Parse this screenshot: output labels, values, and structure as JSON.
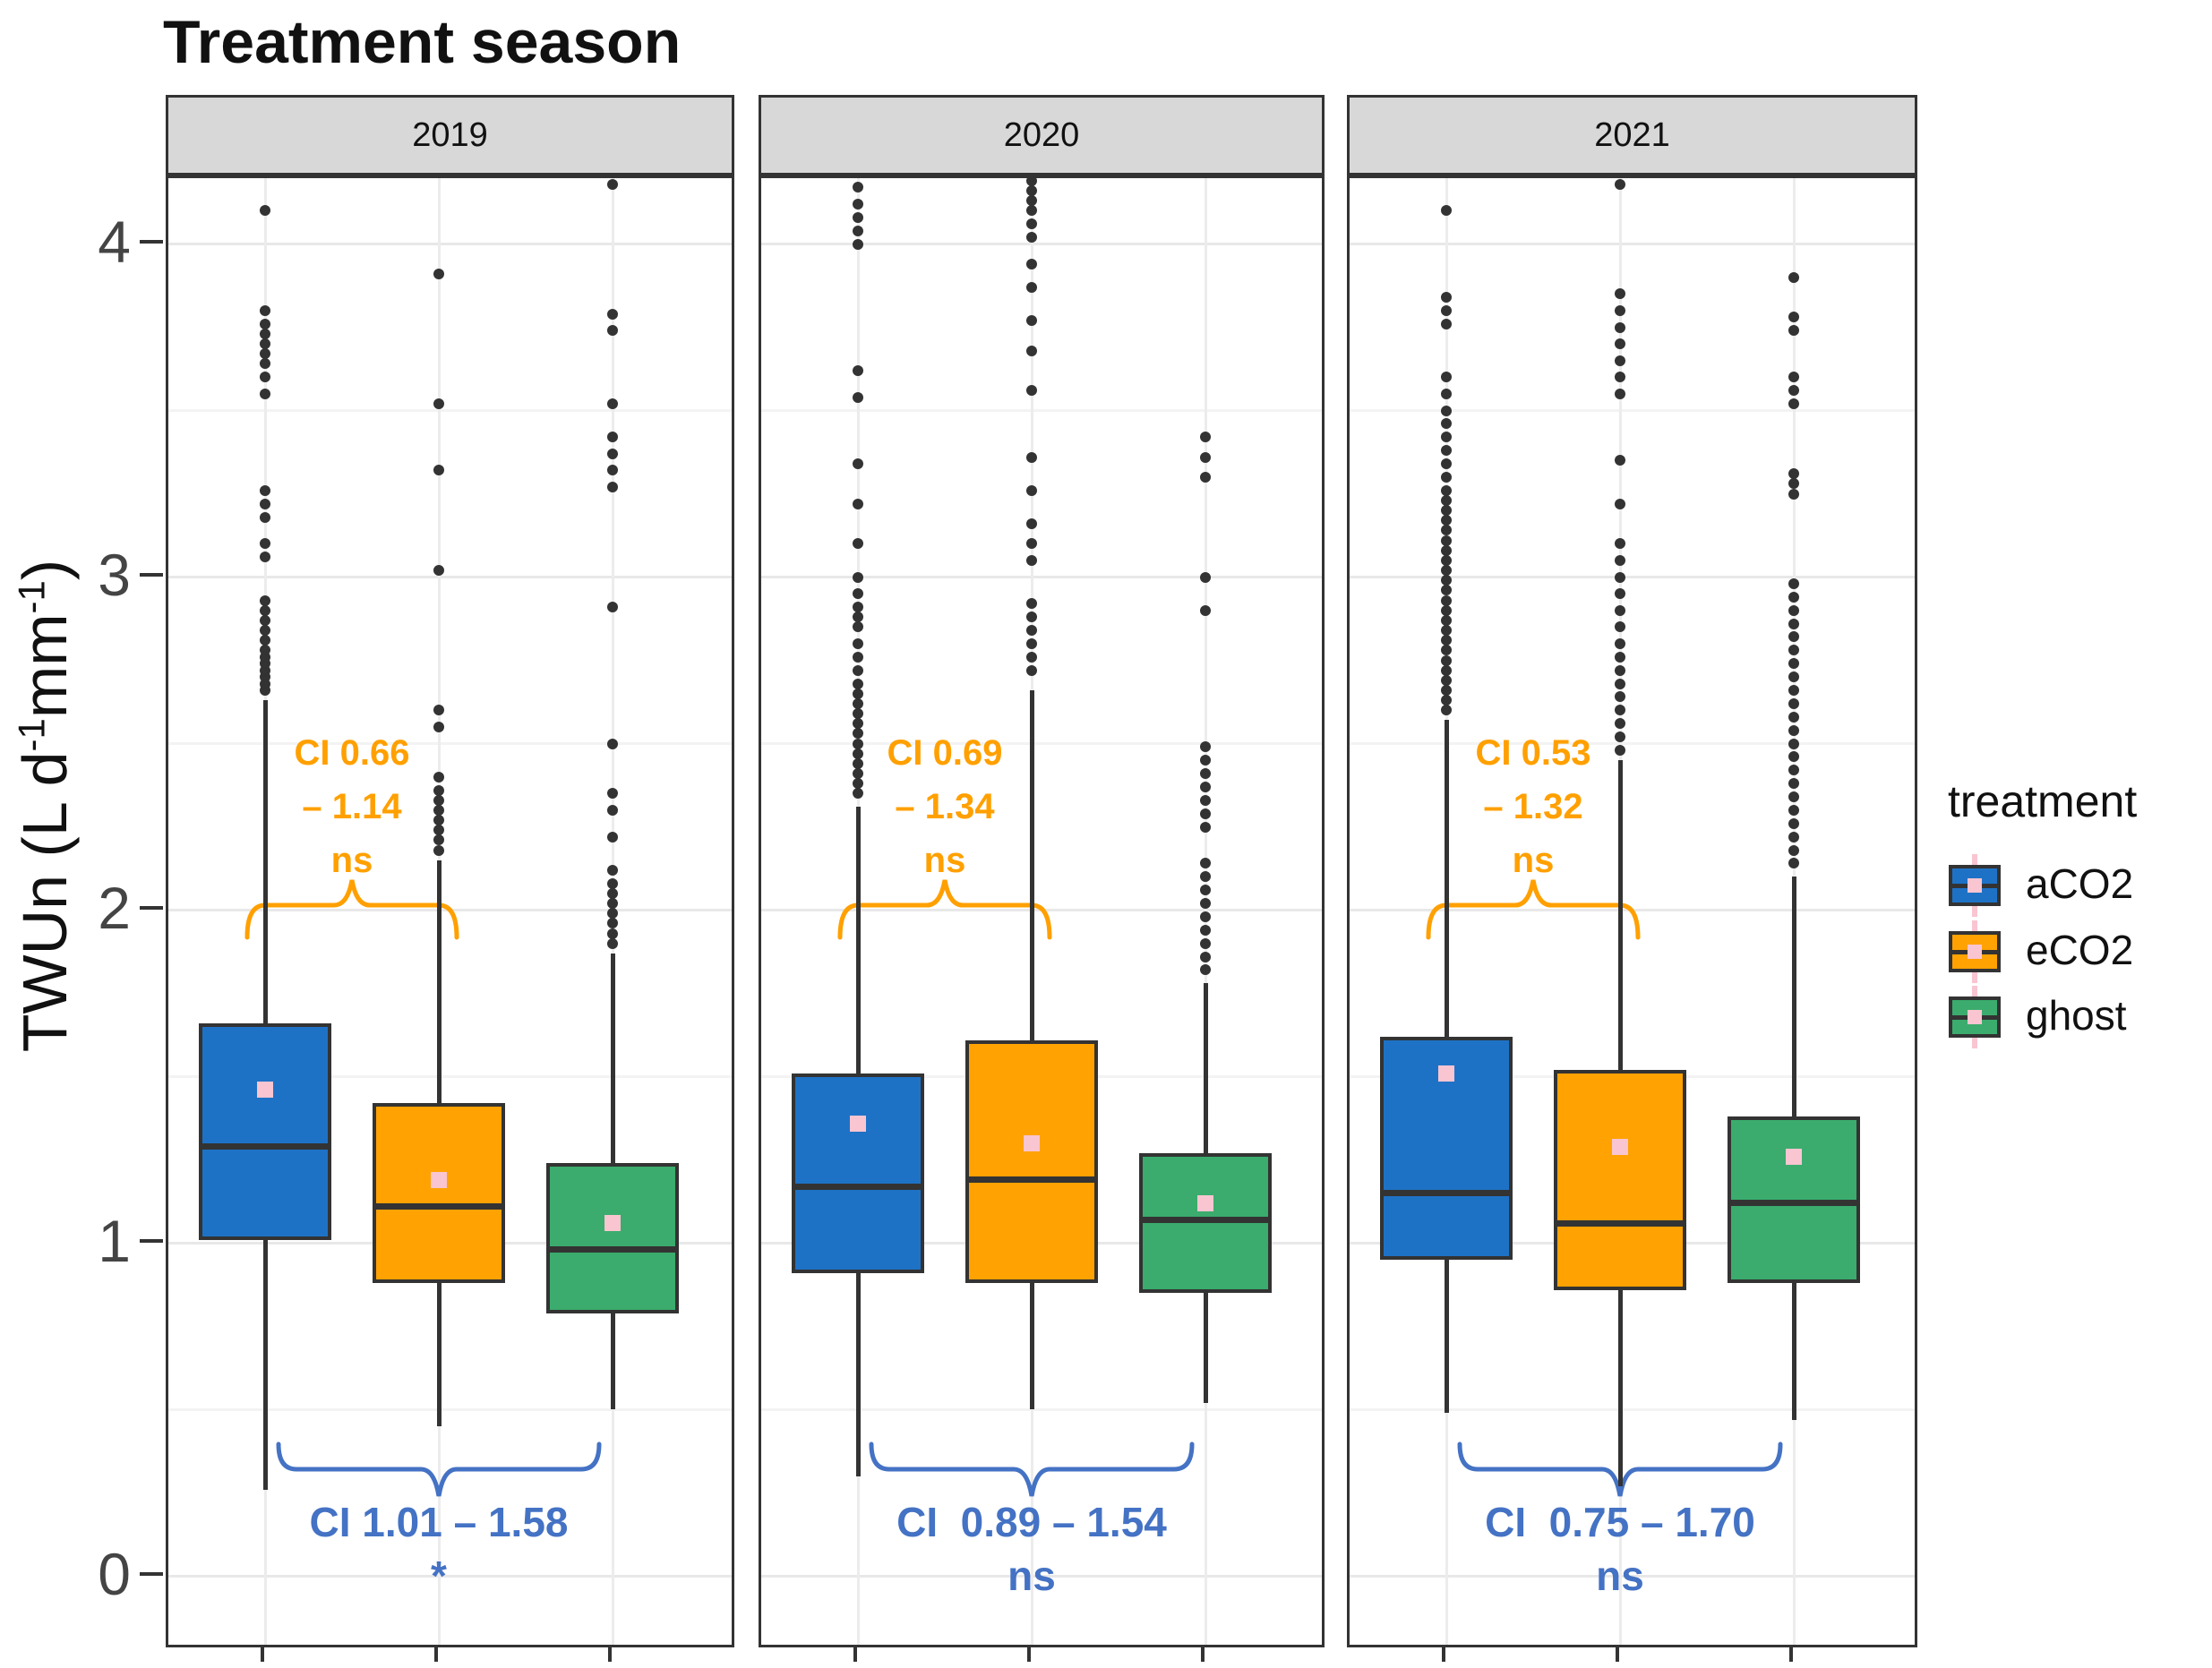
{
  "title": "Treatment season",
  "y_axis": {
    "label_prefix": "TWUn (L d",
    "label_sup1": "-1",
    "label_mid": "mm",
    "label_sup2": "-1",
    "label_suffix": ")",
    "ticks": [
      0,
      1,
      2,
      3,
      4
    ]
  },
  "legend": {
    "title": "treatment",
    "items": [
      {
        "label": "aCO2",
        "color": "#1E72C6"
      },
      {
        "label": "eCO2",
        "color": "#FFA202"
      },
      {
        "label": "ghost",
        "color": "#3BAC6D"
      }
    ]
  },
  "colors": {
    "box_border": "#333333",
    "mean_marker": "#F9C5D1",
    "annotation_top": "#FFA000",
    "annotation_bottom": "#4472C4",
    "strip_bg": "#D8D8D8",
    "grid_major": "#E8E8E8",
    "grid_minor": "#F3F3F3",
    "grid_vertical": "#ECECEC",
    "axis_text": "#444444"
  },
  "chart_data": {
    "type": "boxplot",
    "title": "Treatment season",
    "ylabel": "TWUn (L d-1 mm-1)",
    "ylim": [
      -0.22,
      4.2
    ],
    "yticks": [
      0,
      1,
      2,
      3,
      4
    ],
    "grid": true,
    "legend_title": "treatment",
    "legend_position": "right",
    "series_order": [
      "aCO2",
      "eCO2",
      "ghost"
    ],
    "facets": [
      {
        "label": "2019",
        "boxes": [
          {
            "treatment": "aCO2",
            "color": "#1E72C6",
            "whisker_low": 0.26,
            "q1": 1.01,
            "median": 1.29,
            "q3": 1.66,
            "whisker_high": 2.63,
            "mean": 1.46,
            "outliers": [
              2.66,
              2.68,
              2.7,
              2.72,
              2.74,
              2.76,
              2.78,
              2.81,
              2.84,
              2.87,
              2.9,
              2.93,
              3.06,
              3.1,
              3.18,
              3.22,
              3.26,
              3.55,
              3.6,
              3.64,
              3.67,
              3.7,
              3.73,
              3.76,
              3.8,
              4.1
            ]
          },
          {
            "treatment": "eCO2",
            "color": "#FFA202",
            "whisker_low": 0.45,
            "q1": 0.88,
            "median": 1.11,
            "q3": 1.42,
            "whisker_high": 2.15,
            "mean": 1.19,
            "outliers": [
              2.18,
              2.21,
              2.24,
              2.27,
              2.3,
              2.33,
              2.36,
              2.4,
              2.55,
              2.6,
              3.02,
              3.32,
              3.52,
              3.91
            ]
          },
          {
            "treatment": "ghost",
            "color": "#3BAC6D",
            "whisker_low": 0.5,
            "q1": 0.79,
            "median": 0.98,
            "q3": 1.24,
            "whisker_high": 1.87,
            "mean": 1.06,
            "outliers": [
              1.9,
              1.93,
              1.96,
              1.99,
              2.02,
              2.05,
              2.08,
              2.12,
              2.22,
              2.3,
              2.35,
              2.5,
              2.91,
              3.27,
              3.32,
              3.37,
              3.42,
              3.52,
              3.74,
              3.79,
              4.18
            ]
          }
        ],
        "ci_top": {
          "text_lines": [
            "CI 0.66",
            "– 1.14",
            "ns"
          ],
          "between": [
            0,
            1
          ]
        },
        "ci_bottom": {
          "text_lines": [
            "CI 1.01 – 1.58",
            "*"
          ],
          "between": [
            0,
            2
          ]
        }
      },
      {
        "label": "2020",
        "boxes": [
          {
            "treatment": "aCO2",
            "color": "#1E72C6",
            "whisker_low": 0.3,
            "q1": 0.91,
            "median": 1.17,
            "q3": 1.51,
            "whisker_high": 2.31,
            "mean": 1.36,
            "outliers": [
              2.35,
              2.38,
              2.41,
              2.44,
              2.47,
              2.5,
              2.53,
              2.56,
              2.59,
              2.62,
              2.65,
              2.68,
              2.72,
              2.76,
              2.8,
              2.85,
              2.88,
              2.91,
              2.95,
              3.0,
              3.1,
              3.22,
              3.34,
              3.54,
              3.62,
              4.0,
              4.04,
              4.08,
              4.12,
              4.17
            ]
          },
          {
            "treatment": "eCO2",
            "color": "#FFA202",
            "whisker_low": 0.5,
            "q1": 0.88,
            "median": 1.19,
            "q3": 1.61,
            "whisker_high": 2.66,
            "mean": 1.3,
            "outliers": [
              2.72,
              2.76,
              2.8,
              2.84,
              2.88,
              2.92,
              3.05,
              3.1,
              3.16,
              3.26,
              3.36,
              3.56,
              3.68,
              3.77,
              3.87,
              3.94,
              4.02,
              4.06,
              4.1,
              4.13,
              4.16,
              4.19
            ]
          },
          {
            "treatment": "ghost",
            "color": "#3BAC6D",
            "whisker_low": 0.52,
            "q1": 0.85,
            "median": 1.07,
            "q3": 1.27,
            "whisker_high": 1.78,
            "mean": 1.12,
            "outliers": [
              1.82,
              1.86,
              1.9,
              1.94,
              1.98,
              2.02,
              2.06,
              2.1,
              2.14,
              2.25,
              2.29,
              2.33,
              2.37,
              2.41,
              2.45,
              2.49,
              2.9,
              3.0,
              3.3,
              3.36,
              3.42
            ]
          }
        ],
        "ci_top": {
          "text_lines": [
            "CI 0.69",
            "– 1.34",
            "ns"
          ],
          "between": [
            0,
            1
          ]
        },
        "ci_bottom": {
          "text_lines": [
            "CI  0.89 – 1.54",
            "ns"
          ],
          "between": [
            0,
            2
          ]
        }
      },
      {
        "label": "2021",
        "boxes": [
          {
            "treatment": "aCO2",
            "color": "#1E72C6",
            "whisker_low": 0.49,
            "q1": 0.95,
            "median": 1.15,
            "q3": 1.62,
            "whisker_high": 2.57,
            "mean": 1.51,
            "outliers": [
              2.6,
              2.63,
              2.66,
              2.69,
              2.72,
              2.75,
              2.78,
              2.81,
              2.84,
              2.87,
              2.9,
              2.93,
              2.96,
              2.99,
              3.02,
              3.05,
              3.08,
              3.11,
              3.14,
              3.17,
              3.2,
              3.23,
              3.26,
              3.3,
              3.34,
              3.38,
              3.42,
              3.46,
              3.5,
              3.55,
              3.6,
              3.76,
              3.8,
              3.84,
              4.1,
              4.22
            ]
          },
          {
            "treatment": "eCO2",
            "color": "#FFA202",
            "whisker_low": 0.27,
            "q1": 0.86,
            "median": 1.06,
            "q3": 1.52,
            "whisker_high": 2.45,
            "mean": 1.29,
            "outliers": [
              2.48,
              2.52,
              2.56,
              2.6,
              2.64,
              2.68,
              2.72,
              2.76,
              2.8,
              2.85,
              2.9,
              2.95,
              3.0,
              3.05,
              3.1,
              3.22,
              3.35,
              3.55,
              3.6,
              3.65,
              3.7,
              3.75,
              3.8,
              3.85,
              4.18,
              4.22
            ]
          },
          {
            "treatment": "ghost",
            "color": "#3BAC6D",
            "whisker_low": 0.47,
            "q1": 0.88,
            "median": 1.12,
            "q3": 1.38,
            "whisker_high": 2.1,
            "mean": 1.26,
            "outliers": [
              2.14,
              2.18,
              2.22,
              2.26,
              2.3,
              2.34,
              2.38,
              2.42,
              2.46,
              2.5,
              2.54,
              2.58,
              2.62,
              2.66,
              2.7,
              2.74,
              2.78,
              2.82,
              2.86,
              2.9,
              2.94,
              2.98,
              3.25,
              3.28,
              3.31,
              3.52,
              3.56,
              3.6,
              3.74,
              3.78,
              3.9
            ]
          }
        ],
        "ci_top": {
          "text_lines": [
            "CI 0.53",
            "– 1.32",
            "ns"
          ],
          "between": [
            0,
            1
          ]
        },
        "ci_bottom": {
          "text_lines": [
            "CI  0.75 – 1.70",
            "ns"
          ],
          "between": [
            0,
            2
          ]
        }
      }
    ]
  }
}
